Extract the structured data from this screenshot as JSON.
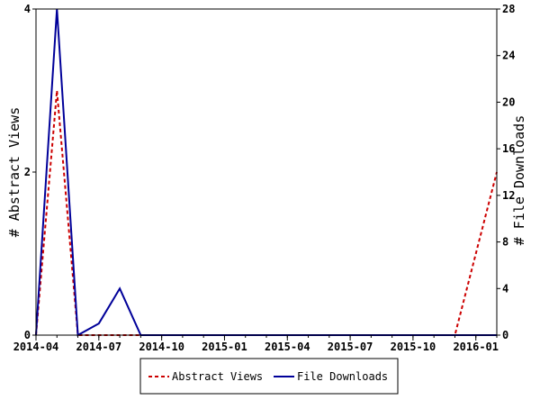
{
  "chart_data": {
    "type": "line",
    "x": [
      "2014-04",
      "2014-05",
      "2014-06",
      "2014-07",
      "2014-08",
      "2014-09",
      "2014-10",
      "2014-11",
      "2014-12",
      "2015-01",
      "2015-02",
      "2015-03",
      "2015-04",
      "2015-05",
      "2015-06",
      "2015-07",
      "2015-08",
      "2015-09",
      "2015-10",
      "2015-11",
      "2015-12",
      "2016-01",
      "2016-02"
    ],
    "series": [
      {
        "name": "Abstract Views",
        "axis": "left",
        "color": "#cc0000",
        "line_style": "dashed",
        "values": [
          0,
          3,
          0,
          0,
          0,
          0,
          0,
          0,
          0,
          0,
          0,
          0,
          0,
          0,
          0,
          0,
          0,
          0,
          0,
          0,
          0,
          1,
          2
        ]
      },
      {
        "name": "File Downloads",
        "axis": "right",
        "color": "#000099",
        "line_style": "solid",
        "values": [
          0,
          28,
          0,
          1,
          4,
          0,
          0,
          0,
          0,
          0,
          0,
          0,
          0,
          0,
          0,
          0,
          0,
          0,
          0,
          0,
          0,
          0,
          0
        ]
      }
    ],
    "x_tick_labels": [
      "2014-04",
      "2014-07",
      "2014-10",
      "2015-01",
      "2015-04",
      "2015-07",
      "2015-10",
      "2016-01"
    ],
    "y_left": {
      "label": "# Abstract Views",
      "ticks": [
        0,
        2,
        4
      ],
      "range": [
        0,
        4
      ]
    },
    "y_right": {
      "label": "# File Downloads",
      "ticks": [
        0,
        4,
        8,
        12,
        16,
        20,
        24,
        28
      ],
      "range": [
        0,
        28
      ]
    },
    "legend": {
      "placement": "bottom-center",
      "entries": [
        "Abstract Views",
        "File Downloads"
      ]
    },
    "grid": false
  }
}
